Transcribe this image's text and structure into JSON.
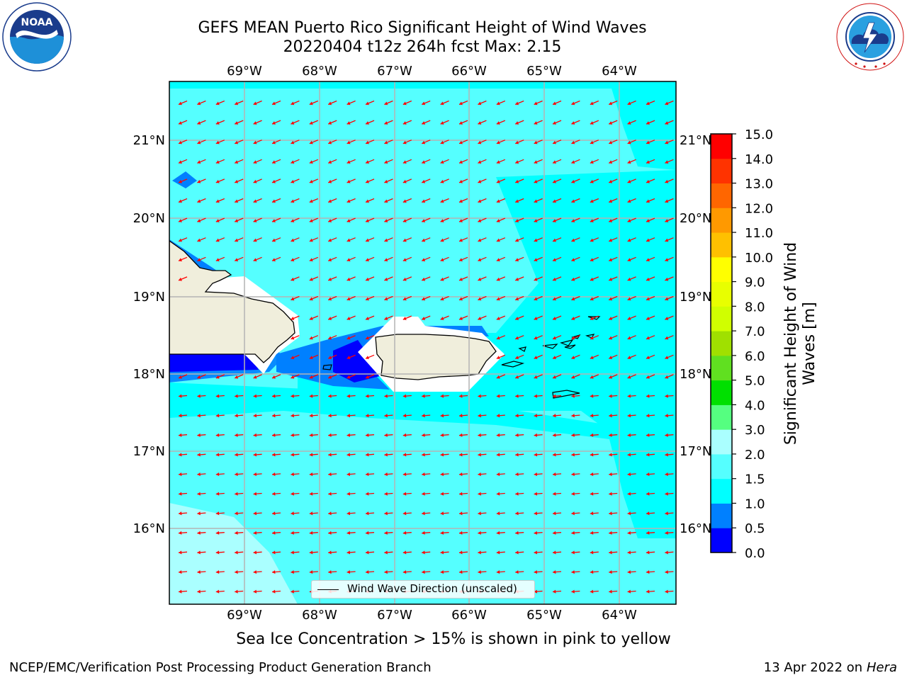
{
  "title": {
    "line1": "GEFS MEAN Puerto Rico Significant Height of Wind Waves",
    "line2": "20220404 t12z 264h fcst   Max: 2.15"
  },
  "logos": {
    "left": "noaa-logo",
    "right": "nws-logo",
    "left_text": "NOAA",
    "left_ring_text": "NATIONAL OCEANIC AND ATMOSPHERIC ADMINISTRATION",
    "left_ring_bottom": "U.S. DEPARTMENT OF COMMERCE",
    "right_ring_text": "NATIONAL WEATHER SERVICE"
  },
  "map": {
    "lon_ticks": [
      "69°W",
      "68°W",
      "67°W",
      "66°W",
      "65°W",
      "64°W"
    ],
    "lat_ticks": [
      "21°N",
      "20°N",
      "19°N",
      "18°N",
      "17°N",
      "16°N"
    ],
    "lon_range": [
      -70.0,
      -63.25
    ],
    "lat_range": [
      15.0,
      21.75
    ],
    "grid": true,
    "colors": {
      "ocean_main": "#00ffff",
      "ocean_light": "#55ffff",
      "ocean_pale": "#aaffff",
      "shallow_blue": "#0080ff",
      "deep_blue": "#0000ff",
      "land": "#f0eedc",
      "arrow": "#ff0000"
    }
  },
  "legend": {
    "label": "Wind Wave Direction (unscaled)"
  },
  "colorbar": {
    "label_line1": "Significant Height of Wind",
    "label_line2": "Waves [m]",
    "ticks": [
      "0.0",
      "0.5",
      "1.0",
      "1.5",
      "2.0",
      "3.0",
      "4.0",
      "5.0",
      "6.0",
      "7.0",
      "8.0",
      "9.0",
      "10.0",
      "11.0",
      "12.0",
      "13.0",
      "14.0",
      "15.0"
    ],
    "colors": [
      "#0000ff",
      "#0080ff",
      "#00ffff",
      "#55ffff",
      "#aaffff",
      "#55ff80",
      "#00e000",
      "#60e020",
      "#a0e000",
      "#d0ff00",
      "#e8ff00",
      "#ffff00",
      "#ffc000",
      "#ff9900",
      "#ff6600",
      "#ff3300",
      "#ff0000"
    ]
  },
  "ice_note": "Sea Ice Concentration > 15% is shown in pink to yellow",
  "footer": {
    "left": "NCEP/EMC/Verification Post Processing Product Generation Branch",
    "right_date": "13 Apr 2022 on ",
    "right_host": "Hera"
  }
}
